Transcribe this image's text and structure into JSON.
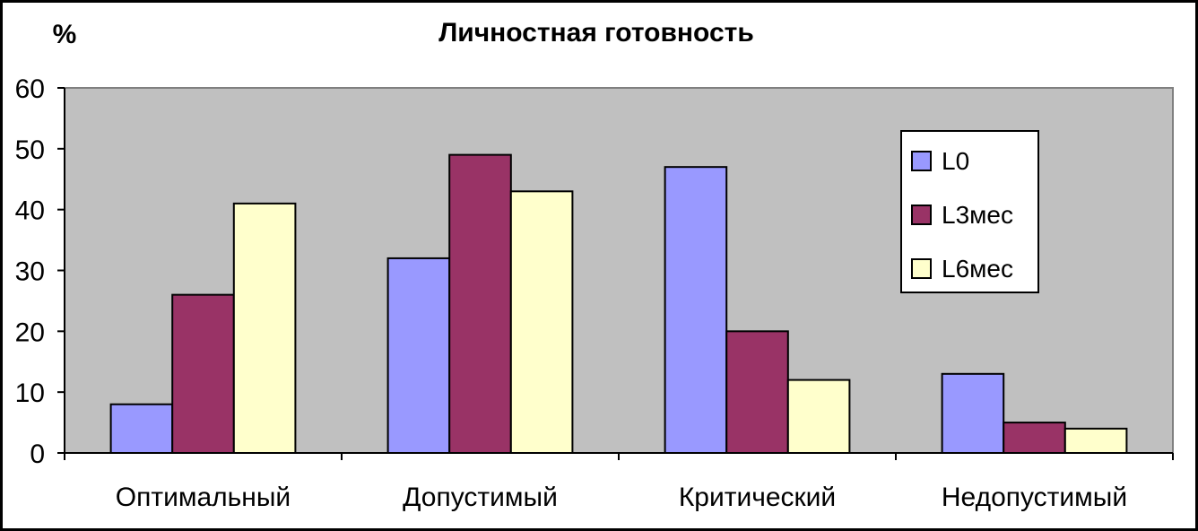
{
  "chart_data": {
    "type": "bar",
    "title": "Личностная готовность",
    "ylabel": "%",
    "xlabel": "",
    "ylim": [
      0,
      60
    ],
    "yticks": [
      0,
      10,
      20,
      30,
      40,
      50,
      60
    ],
    "grid": false,
    "legend_position": "top-right",
    "categories": [
      "Оптимальный",
      "Допустимый",
      "Критический",
      "Недопустимый"
    ],
    "series": [
      {
        "name": "L0",
        "color": "#9999ff",
        "values": [
          8,
          32,
          47,
          13
        ]
      },
      {
        "name": "L3мес",
        "color": "#993366",
        "values": [
          26,
          49,
          20,
          5
        ]
      },
      {
        "name": "L6мес",
        "color": "#ffffcc",
        "values": [
          41,
          43,
          12,
          4
        ]
      }
    ],
    "plot_background": "#c0c0c0"
  }
}
